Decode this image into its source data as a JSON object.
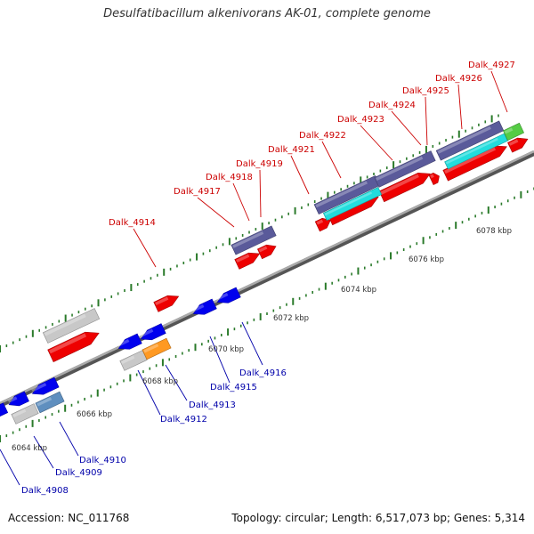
{
  "header": {
    "title": "Desulfatibacillum alkenivorans AK-01, complete genome"
  },
  "footer": {
    "accession": "Accession: NC_011768",
    "info": "Topology: circular; Length: 6,517,073 bp; Genes: 5,314"
  },
  "scale": {
    "ticks": [
      "6064 kbp",
      "6066 kbp",
      "6068 kbp",
      "6070 kbp",
      "6072 kbp",
      "6074 kbp",
      "6076 kbp",
      "6078 kbp"
    ]
  },
  "genes_top": [
    "Dalk_4914",
    "Dalk_4917",
    "Dalk_4918",
    "Dalk_4919",
    "Dalk_4921",
    "Dalk_4922",
    "Dalk_4923",
    "Dalk_4924",
    "Dalk_4925",
    "Dalk_4926",
    "Dalk_4927"
  ],
  "genes_bottom": [
    "Dalk_4908",
    "Dalk_4909",
    "Dalk_4910",
    "Dalk_4912",
    "Dalk_4913",
    "Dalk_4915",
    "Dalk_4916"
  ],
  "colors": {
    "forward_gene": "#ee0000",
    "reverse_gene": "#0000ee",
    "top_label": "#cc0000",
    "bottom_label": "#0000aa",
    "backbone": "#999999",
    "tick": "#2a7a2a",
    "operon_dark": "#5a5a9a",
    "operon_cyan": "#22dddd",
    "rna_gray": "#c8c8c8",
    "orange_gene": "#ff9922",
    "steel_gene": "#5f8fbf",
    "green_gene": "#55cc44"
  }
}
